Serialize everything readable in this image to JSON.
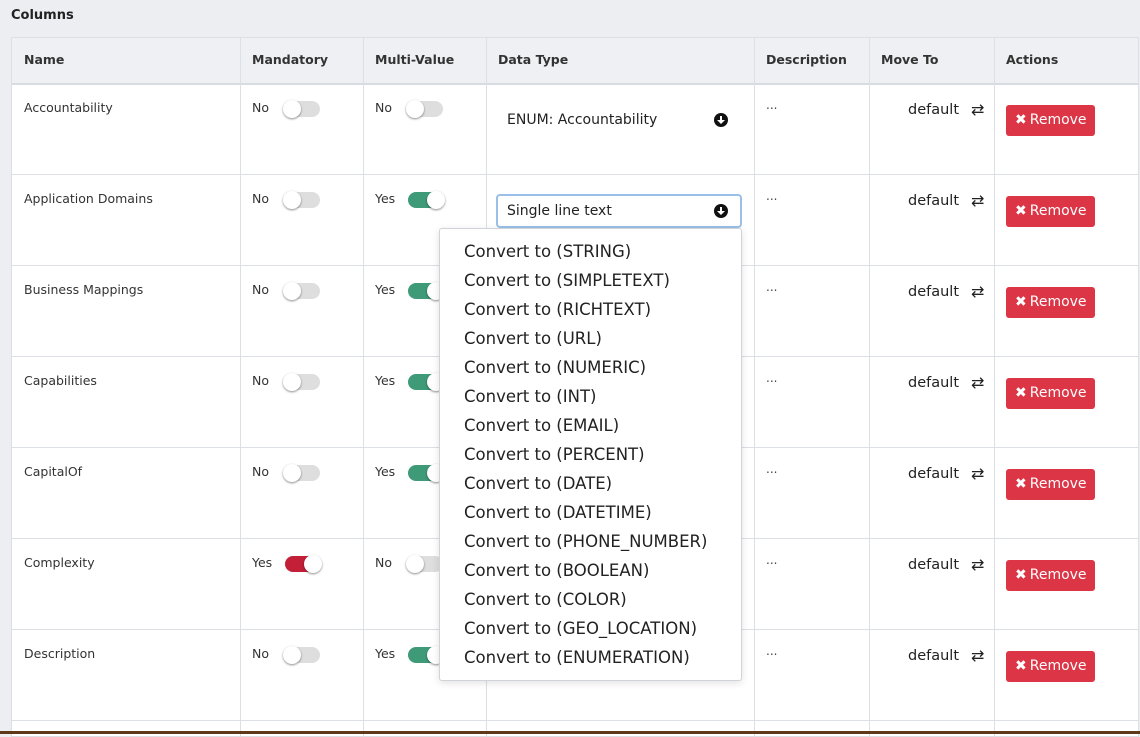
{
  "section_title": "Columns",
  "headers": [
    "Name",
    "Mandatory",
    "Multi-Value",
    "Data Type",
    "Description",
    "Move To",
    "Actions"
  ],
  "rows": [
    {
      "name": "Accountability",
      "mandatory": "No",
      "mandatory_on": false,
      "multi": "No",
      "multi_on": false,
      "data_type": "ENUM: Accountability",
      "description": "...",
      "move_to": "default",
      "remove_label": "Remove"
    },
    {
      "name": "Application Domains",
      "mandatory": "No",
      "mandatory_on": false,
      "multi": "Yes",
      "multi_on": true,
      "data_type": "Single line text",
      "description": "...",
      "move_to": "default",
      "remove_label": "Remove"
    },
    {
      "name": "Business Mappings",
      "mandatory": "No",
      "mandatory_on": false,
      "multi": "Yes",
      "multi_on": true,
      "data_type": "",
      "description": "...",
      "move_to": "default",
      "remove_label": "Remove"
    },
    {
      "name": "Capabilities",
      "mandatory": "No",
      "mandatory_on": false,
      "multi": "Yes",
      "multi_on": true,
      "data_type": "",
      "description": "...",
      "move_to": "default",
      "remove_label": "Remove"
    },
    {
      "name": "CapitalOf",
      "mandatory": "No",
      "mandatory_on": false,
      "multi": "Yes",
      "multi_on": true,
      "data_type": "",
      "description": "...",
      "move_to": "default",
      "remove_label": "Remove"
    },
    {
      "name": "Complexity",
      "mandatory": "Yes",
      "mandatory_on": true,
      "multi": "No",
      "multi_on": false,
      "data_type": "",
      "description": "...",
      "move_to": "default",
      "remove_label": "Remove"
    },
    {
      "name": "Description",
      "mandatory": "No",
      "mandatory_on": false,
      "multi": "Yes",
      "multi_on": true,
      "data_type": "",
      "description": "...",
      "move_to": "default",
      "remove_label": "Remove"
    }
  ],
  "dropdown_menu": [
    "Convert to (STRING)",
    "Convert to (SIMPLETEXT)",
    "Convert to (RICHTEXT)",
    "Convert to (URL)",
    "Convert to (NUMERIC)",
    "Convert to (INT)",
    "Convert to (EMAIL)",
    "Convert to (PERCENT)",
    "Convert to (DATE)",
    "Convert to (DATETIME)",
    "Convert to (PHONE_NUMBER)",
    "Convert to (BOOLEAN)",
    "Convert to (COLOR)",
    "Convert to (GEO_LOCATION)",
    "Convert to (ENUMERATION)"
  ],
  "icons": {
    "move": "swap-arrows-icon",
    "remove": "times-icon",
    "select": "arrow-circle-down-icon"
  },
  "colors": {
    "mandatory_on": "#c32038",
    "multi_on": "#3f9a78",
    "remove": "#dc3545",
    "focus": "#9ac0ea"
  }
}
